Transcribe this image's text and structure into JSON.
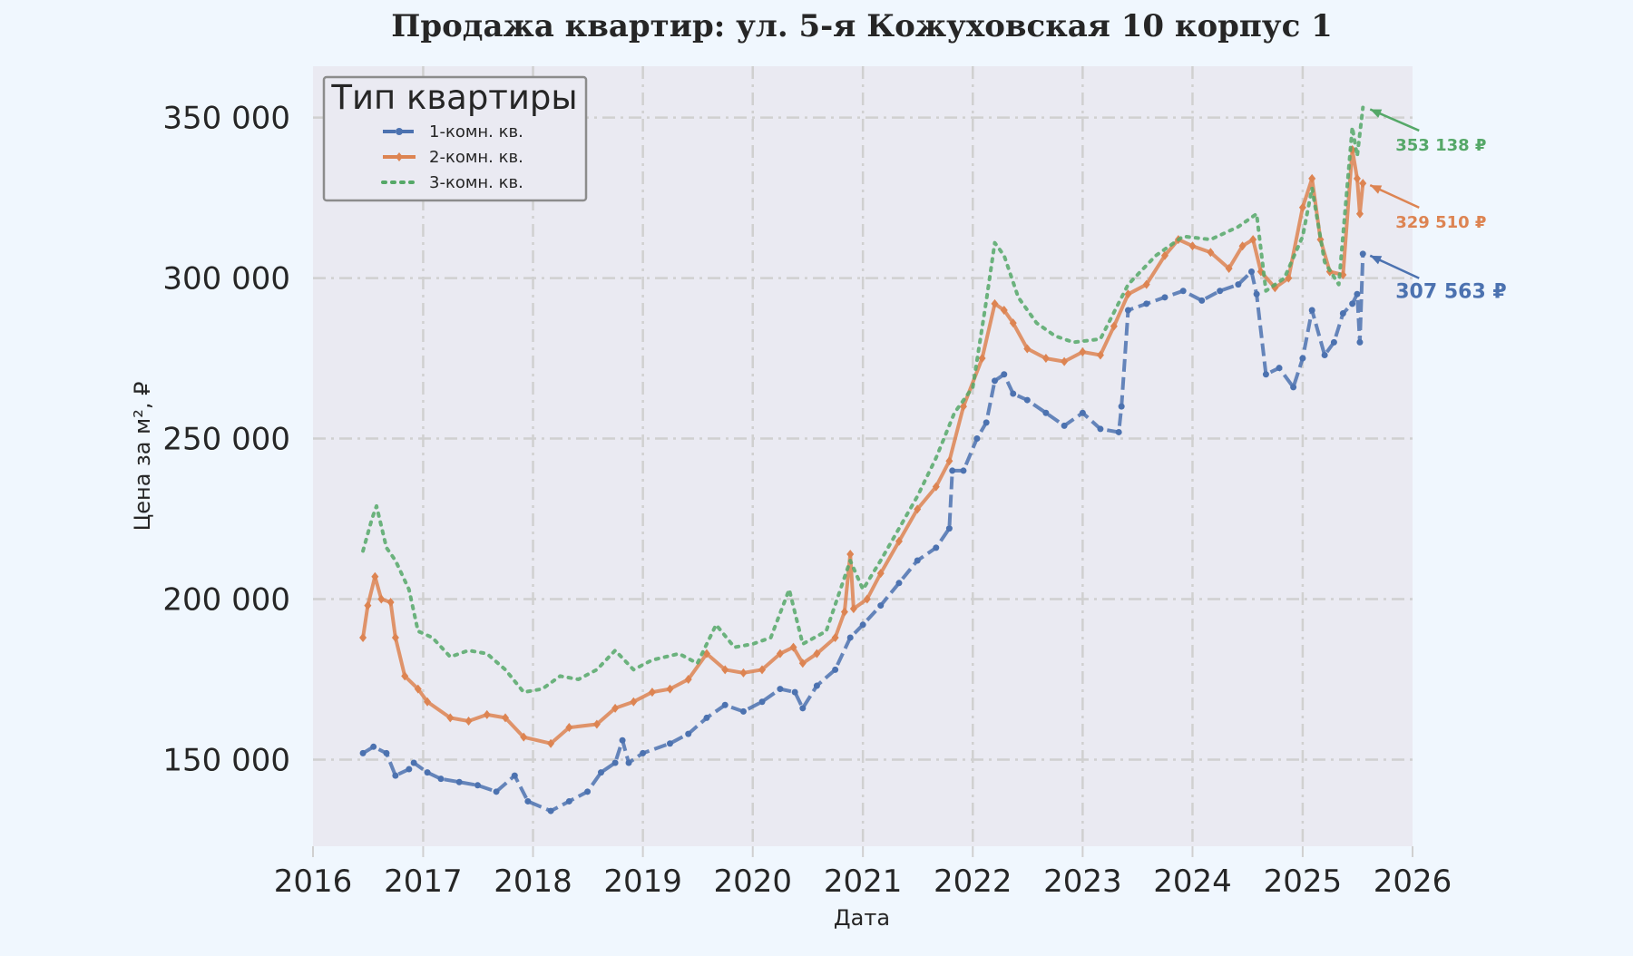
{
  "chart_data": {
    "type": "line",
    "title": "Продажа квартир: ул. 5-я Кожуховская 10 корпус 1",
    "xlabel": "Дата",
    "ylabel": "Цена за м², ₽",
    "xlim": [
      "2016-01-01",
      "2026-01-01"
    ],
    "ylim": [
      123000,
      366000
    ],
    "x_ticks": [
      "2016",
      "2017",
      "2018",
      "2019",
      "2020",
      "2021",
      "2022",
      "2023",
      "2024",
      "2025",
      "2026"
    ],
    "y_ticks": [
      150000,
      200000,
      250000,
      300000,
      350000
    ],
    "y_tick_labels": [
      "150 000",
      "200 000",
      "250 000",
      "300 000",
      "350 000"
    ],
    "grid": true,
    "legend": {
      "title": "Тип квартиры",
      "position": "top-left"
    },
    "series": [
      {
        "name": "1-комн. кв.",
        "color": "#4c72b0",
        "style": "dashed",
        "marker": "circle",
        "points": [
          [
            "2016-06-15",
            152000
          ],
          [
            "2016-07-20",
            154000
          ],
          [
            "2016-09-01",
            152000
          ],
          [
            "2016-10-01",
            145000
          ],
          [
            "2016-11-15",
            147000
          ],
          [
            "2016-12-01",
            149000
          ],
          [
            "2017-01-15",
            146000
          ],
          [
            "2017-03-01",
            144000
          ],
          [
            "2017-05-01",
            143000
          ],
          [
            "2017-07-01",
            142000
          ],
          [
            "2017-09-01",
            140000
          ],
          [
            "2017-11-01",
            145000
          ],
          [
            "2017-12-15",
            137000
          ],
          [
            "2018-03-01",
            134000
          ],
          [
            "2018-05-01",
            137000
          ],
          [
            "2018-07-01",
            140000
          ],
          [
            "2018-08-15",
            146000
          ],
          [
            "2018-10-01",
            149000
          ],
          [
            "2018-10-25",
            156000
          ],
          [
            "2018-11-15",
            149000
          ],
          [
            "2019-01-01",
            152000
          ],
          [
            "2019-04-01",
            155000
          ],
          [
            "2019-06-01",
            158000
          ],
          [
            "2019-08-01",
            163000
          ],
          [
            "2019-10-01",
            167000
          ],
          [
            "2019-12-01",
            165000
          ],
          [
            "2020-02-01",
            168000
          ],
          [
            "2020-04-01",
            172000
          ],
          [
            "2020-05-20",
            171000
          ],
          [
            "2020-06-15",
            166000
          ],
          [
            "2020-08-01",
            173000
          ],
          [
            "2020-10-01",
            178000
          ],
          [
            "2020-11-20",
            188000
          ],
          [
            "2021-01-01",
            192000
          ],
          [
            "2021-03-01",
            198000
          ],
          [
            "2021-05-01",
            205000
          ],
          [
            "2021-07-01",
            212000
          ],
          [
            "2021-09-01",
            216000
          ],
          [
            "2021-10-15",
            222000
          ],
          [
            "2021-10-25",
            240000
          ],
          [
            "2021-12-01",
            240000
          ],
          [
            "2022-01-15",
            250000
          ],
          [
            "2022-02-15",
            255000
          ],
          [
            "2022-03-15",
            268000
          ],
          [
            "2022-04-15",
            270000
          ],
          [
            "2022-05-15",
            264000
          ],
          [
            "2022-07-01",
            262000
          ],
          [
            "2022-09-01",
            258000
          ],
          [
            "2022-11-01",
            254000
          ],
          [
            "2023-01-01",
            258000
          ],
          [
            "2023-03-01",
            253000
          ],
          [
            "2023-05-01",
            252000
          ],
          [
            "2023-05-10",
            260000
          ],
          [
            "2023-06-01",
            290000
          ],
          [
            "2023-08-01",
            292000
          ],
          [
            "2023-10-01",
            294000
          ],
          [
            "2023-12-01",
            296000
          ],
          [
            "2024-02-01",
            293000
          ],
          [
            "2024-04-01",
            296000
          ],
          [
            "2024-06-01",
            298000
          ],
          [
            "2024-07-15",
            302000
          ],
          [
            "2024-08-01",
            295000
          ],
          [
            "2024-09-01",
            270000
          ],
          [
            "2024-10-15",
            272000
          ],
          [
            "2024-12-01",
            266000
          ],
          [
            "2025-01-01",
            275000
          ],
          [
            "2025-02-01",
            290000
          ],
          [
            "2025-03-15",
            276000
          ],
          [
            "2025-04-15",
            280000
          ],
          [
            "2025-05-15",
            289000
          ],
          [
            "2025-06-15",
            292000
          ],
          [
            "2025-07-01",
            295000
          ],
          [
            "2025-07-10",
            280000
          ],
          [
            "2025-07-20",
            307563
          ]
        ]
      },
      {
        "name": "2-комн. кв.",
        "color": "#dd8452",
        "style": "solid",
        "marker": "diamond",
        "points": [
          [
            "2016-06-15",
            188000
          ],
          [
            "2016-07-01",
            198000
          ],
          [
            "2016-07-25",
            207000
          ],
          [
            "2016-08-15",
            200000
          ],
          [
            "2016-09-15",
            199000
          ],
          [
            "2016-10-01",
            188000
          ],
          [
            "2016-11-01",
            176000
          ],
          [
            "2016-12-15",
            172000
          ],
          [
            "2017-01-15",
            168000
          ],
          [
            "2017-04-01",
            163000
          ],
          [
            "2017-06-01",
            162000
          ],
          [
            "2017-08-01",
            164000
          ],
          [
            "2017-10-01",
            163000
          ],
          [
            "2017-12-01",
            157000
          ],
          [
            "2018-03-01",
            155000
          ],
          [
            "2018-05-01",
            160000
          ],
          [
            "2018-08-01",
            161000
          ],
          [
            "2018-10-01",
            166000
          ],
          [
            "2018-12-01",
            168000
          ],
          [
            "2019-02-01",
            171000
          ],
          [
            "2019-04-01",
            172000
          ],
          [
            "2019-06-01",
            175000
          ],
          [
            "2019-08-01",
            183000
          ],
          [
            "2019-10-01",
            178000
          ],
          [
            "2019-12-01",
            177000
          ],
          [
            "2020-02-01",
            178000
          ],
          [
            "2020-04-01",
            183000
          ],
          [
            "2020-05-15",
            185000
          ],
          [
            "2020-06-15",
            180000
          ],
          [
            "2020-08-01",
            183000
          ],
          [
            "2020-10-01",
            188000
          ],
          [
            "2020-11-01",
            196000
          ],
          [
            "2020-11-20",
            214000
          ],
          [
            "2020-12-01",
            197000
          ],
          [
            "2021-01-15",
            200000
          ],
          [
            "2021-03-01",
            208000
          ],
          [
            "2021-05-01",
            218000
          ],
          [
            "2021-07-01",
            228000
          ],
          [
            "2021-09-01",
            235000
          ],
          [
            "2021-10-15",
            243000
          ],
          [
            "2021-12-01",
            260000
          ],
          [
            "2022-02-01",
            275000
          ],
          [
            "2022-03-15",
            292000
          ],
          [
            "2022-04-15",
            290000
          ],
          [
            "2022-05-15",
            286000
          ],
          [
            "2022-07-01",
            278000
          ],
          [
            "2022-09-01",
            275000
          ],
          [
            "2022-11-01",
            274000
          ],
          [
            "2023-01-01",
            277000
          ],
          [
            "2023-03-01",
            276000
          ],
          [
            "2023-04-15",
            285000
          ],
          [
            "2023-06-01",
            295000
          ],
          [
            "2023-08-01",
            298000
          ],
          [
            "2023-10-01",
            307000
          ],
          [
            "2023-11-15",
            312000
          ],
          [
            "2024-01-01",
            310000
          ],
          [
            "2024-03-01",
            308000
          ],
          [
            "2024-05-01",
            303000
          ],
          [
            "2024-06-15",
            310000
          ],
          [
            "2024-07-20",
            312000
          ],
          [
            "2024-08-15",
            302000
          ],
          [
            "2024-10-01",
            297000
          ],
          [
            "2024-11-15",
            300000
          ],
          [
            "2025-01-01",
            322000
          ],
          [
            "2025-02-01",
            331000
          ],
          [
            "2025-03-01",
            312000
          ],
          [
            "2025-04-01",
            302000
          ],
          [
            "2025-05-15",
            301000
          ],
          [
            "2025-06-15",
            340000
          ],
          [
            "2025-07-01",
            331000
          ],
          [
            "2025-07-10",
            320000
          ],
          [
            "2025-07-20",
            329510
          ]
        ]
      },
      {
        "name": "3-комн. кв.",
        "color": "#55a868",
        "style": "dotted",
        "marker": "none",
        "points": [
          [
            "2016-06-15",
            215000
          ],
          [
            "2016-07-15",
            225000
          ],
          [
            "2016-07-30",
            229000
          ],
          [
            "2016-09-01",
            216000
          ],
          [
            "2016-10-01",
            212000
          ],
          [
            "2016-11-15",
            203000
          ],
          [
            "2016-12-15",
            190000
          ],
          [
            "2017-02-01",
            188000
          ],
          [
            "2017-04-01",
            182000
          ],
          [
            "2017-06-01",
            184000
          ],
          [
            "2017-08-01",
            183000
          ],
          [
            "2017-10-01",
            178000
          ],
          [
            "2017-12-01",
            171000
          ],
          [
            "2018-02-01",
            172000
          ],
          [
            "2018-04-01",
            176000
          ],
          [
            "2018-06-01",
            175000
          ],
          [
            "2018-08-01",
            178000
          ],
          [
            "2018-10-01",
            184000
          ],
          [
            "2018-12-01",
            178000
          ],
          [
            "2019-02-01",
            181000
          ],
          [
            "2019-05-01",
            183000
          ],
          [
            "2019-07-01",
            180000
          ],
          [
            "2019-09-01",
            192000
          ],
          [
            "2019-11-01",
            185000
          ],
          [
            "2020-01-01",
            186000
          ],
          [
            "2020-03-01",
            188000
          ],
          [
            "2020-05-01",
            203000
          ],
          [
            "2020-06-15",
            186000
          ],
          [
            "2020-09-01",
            190000
          ],
          [
            "2020-11-20",
            212000
          ],
          [
            "2021-01-01",
            203000
          ],
          [
            "2021-03-01",
            212000
          ],
          [
            "2021-05-01",
            222000
          ],
          [
            "2021-07-01",
            232000
          ],
          [
            "2021-09-01",
            244000
          ],
          [
            "2021-11-01",
            258000
          ],
          [
            "2022-01-01",
            266000
          ],
          [
            "2022-02-15",
            293000
          ],
          [
            "2022-03-15",
            311000
          ],
          [
            "2022-04-15",
            307000
          ],
          [
            "2022-06-01",
            294000
          ],
          [
            "2022-08-01",
            286000
          ],
          [
            "2022-10-01",
            282000
          ],
          [
            "2022-12-01",
            280000
          ],
          [
            "2023-03-01",
            281000
          ],
          [
            "2023-06-01",
            298000
          ],
          [
            "2023-09-01",
            307000
          ],
          [
            "2023-12-01",
            313000
          ],
          [
            "2024-03-01",
            312000
          ],
          [
            "2024-06-01",
            316000
          ],
          [
            "2024-08-01",
            320000
          ],
          [
            "2024-09-01",
            296000
          ],
          [
            "2024-11-01",
            300000
          ],
          [
            "2025-01-01",
            313000
          ],
          [
            "2025-02-01",
            328000
          ],
          [
            "2025-03-15",
            305000
          ],
          [
            "2025-05-01",
            298000
          ],
          [
            "2025-06-15",
            347000
          ],
          [
            "2025-07-01",
            338000
          ],
          [
            "2025-07-20",
            353138
          ]
        ]
      }
    ],
    "annotations": [
      {
        "text": "353 138 ₽",
        "series": 2,
        "date": "2025-07-20",
        "value": 353138,
        "label_value": 342000
      },
      {
        "text": "329 510 ₽",
        "series": 1,
        "date": "2025-07-20",
        "value": 329510,
        "label_value": 318000
      },
      {
        "text": "307 563 ₽",
        "series": 0,
        "date": "2025-07-20",
        "value": 307563,
        "label_value": 296000
      }
    ]
  }
}
